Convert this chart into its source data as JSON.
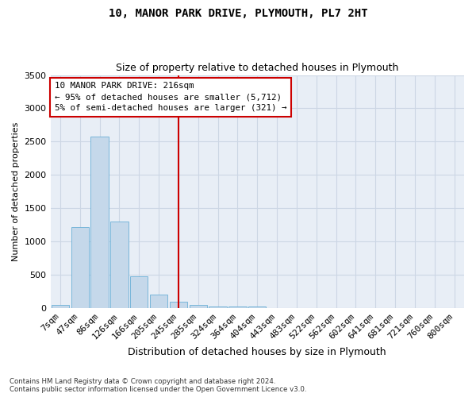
{
  "title": "10, MANOR PARK DRIVE, PLYMOUTH, PL7 2HT",
  "subtitle": "Size of property relative to detached houses in Plymouth",
  "xlabel": "Distribution of detached houses by size in Plymouth",
  "ylabel": "Number of detached properties",
  "bar_labels": [
    "7sqm",
    "47sqm",
    "86sqm",
    "126sqm",
    "166sqm",
    "205sqm",
    "245sqm",
    "285sqm",
    "324sqm",
    "364sqm",
    "404sqm",
    "443sqm",
    "483sqm",
    "522sqm",
    "562sqm",
    "602sqm",
    "641sqm",
    "681sqm",
    "721sqm",
    "760sqm",
    "800sqm"
  ],
  "bar_values": [
    50,
    1220,
    2580,
    1300,
    480,
    200,
    100,
    50,
    30,
    20,
    30,
    0,
    0,
    0,
    0,
    0,
    0,
    0,
    0,
    0,
    0
  ],
  "bar_color": "#c5d8ea",
  "bar_edgecolor": "#6aafd6",
  "vline_x_index": 6.0,
  "annotation_text_line1": "10 MANOR PARK DRIVE: 216sqm",
  "annotation_text_line2": "← 95% of detached houses are smaller (5,712)",
  "annotation_text_line3": "5% of semi-detached houses are larger (321) →",
  "annotation_box_edgecolor": "#cc0000",
  "vline_color": "#cc0000",
  "ylim": [
    0,
    3500
  ],
  "yticks": [
    0,
    500,
    1000,
    1500,
    2000,
    2500,
    3000,
    3500
  ],
  "grid_color": "#ccd6e4",
  "background_color": "#e8eef6",
  "footer_line1": "Contains HM Land Registry data © Crown copyright and database right 2024.",
  "footer_line2": "Contains public sector information licensed under the Open Government Licence v3.0."
}
